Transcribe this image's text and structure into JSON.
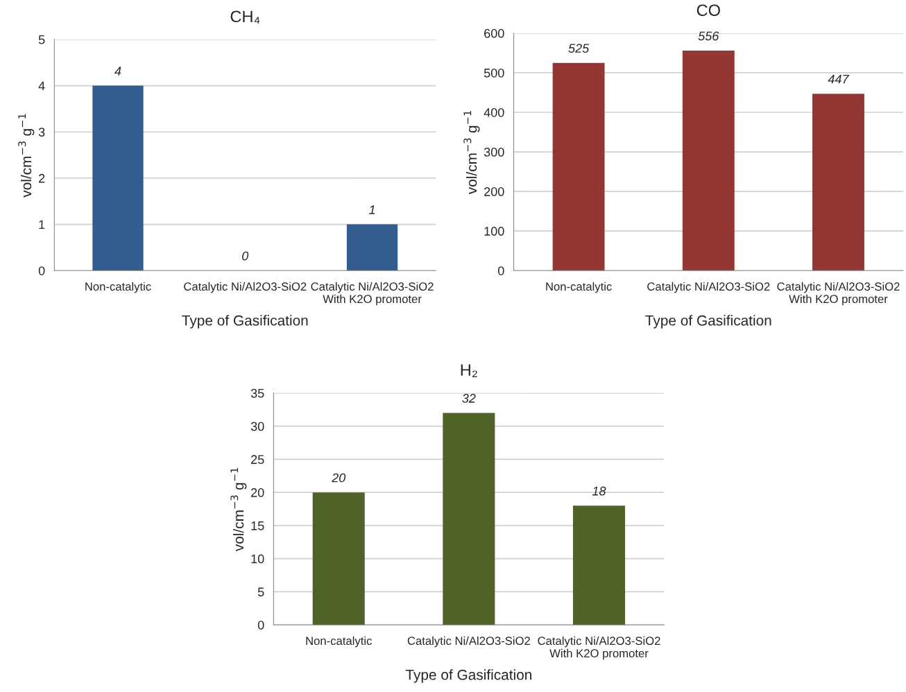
{
  "chart_data": [
    {
      "type": "bar",
      "title": "CH₄",
      "xlabel": "Type of Gasification",
      "ylabel": "vol/cm$^{−3}$ g$^{−1}$",
      "categories": [
        "Non-catalytic",
        "Catalytic Ni/Al2O3-SiO2",
        "Catalytic Ni/Al2O3-SiO2\nWith K2O promoter"
      ],
      "values": [
        4,
        0,
        1
      ],
      "color": "#335d8f",
      "ylim": [
        0,
        5
      ],
      "yticks": [
        0,
        1,
        2,
        3,
        4,
        5
      ],
      "grid": "y",
      "data_labels": true
    },
    {
      "type": "bar",
      "title": "CO",
      "xlabel": "Type of Gasification",
      "ylabel": "vol/cm$^{−3}$ g$^{−1}$",
      "categories": [
        "Non-catalytic",
        "Catalytic Ni/Al2O3-SiO2",
        "Catalytic Ni/Al2O3-SiO2\nWith K2O promoter"
      ],
      "values": [
        525,
        556,
        447
      ],
      "color": "#943634",
      "ylim": [
        0,
        600
      ],
      "yticks": [
        0,
        100,
        200,
        300,
        400,
        500,
        600
      ],
      "grid": "y",
      "data_labels": true
    },
    {
      "type": "bar",
      "title": "H₂",
      "xlabel": "Type of Gasification",
      "ylabel": "vol/cm$^{−3}$ g$^{−1}$",
      "categories": [
        "Non-catalytic",
        "Catalytic Ni/Al2O3-SiO2",
        "Catalytic Ni/Al2O3-SiO2\nWith K2O promoter"
      ],
      "values": [
        20,
        32,
        18
      ],
      "color": "#4f6228",
      "ylim": [
        0,
        35
      ],
      "yticks": [
        0,
        5,
        10,
        15,
        20,
        25,
        30,
        35
      ],
      "grid": "y",
      "data_labels": true
    }
  ]
}
